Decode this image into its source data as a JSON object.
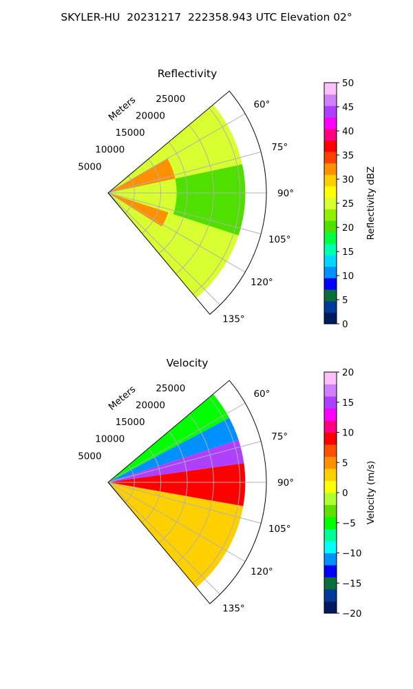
{
  "suptitle": "SKYLER-HU  20231217  222358.943 UTC Elevation 02°",
  "chart_data": [
    {
      "type": "heatmap",
      "projection": "polar-sector",
      "title": "Reflectivity",
      "radial_label": "Meters",
      "radial_ticks": [
        5000,
        10000,
        15000,
        20000,
        25000
      ],
      "theta_ticks": [
        "60°",
        "75°",
        "90°",
        "105°",
        "120°",
        "135°"
      ],
      "theta_range_deg": [
        50,
        140
      ],
      "r_range_m": [
        0,
        30000
      ],
      "grid": true,
      "colorbar": {
        "label": "Reflectivity dBZ",
        "vmin": 0,
        "vmax": 50,
        "ticks": [
          "0",
          "5",
          "10",
          "15",
          "20",
          "25",
          "30",
          "35",
          "40",
          "45",
          "50"
        ],
        "colors": [
          "#001a60",
          "#003a99",
          "#0a6e3a",
          "#0000ff",
          "#0090ff",
          "#00d8ff",
          "#00ffb0",
          "#00ff40",
          "#50e000",
          "#90f000",
          "#d8ff30",
          "#ffff00",
          "#ffd000",
          "#ff9000",
          "#ff4000",
          "#ff0000",
          "#ff0080",
          "#ff00ff",
          "#b040ff",
          "#d080ff",
          "#ffc0ff"
        ]
      },
      "regions": [
        {
          "t0": 50,
          "t1": 140,
          "r0": 0,
          "r1": 26000,
          "value": 24
        },
        {
          "t0": 60,
          "t1": 78,
          "r0": 0,
          "r1": 13000,
          "value": 33
        },
        {
          "t0": 108,
          "t1": 122,
          "r0": 0,
          "r1": 12000,
          "value": 33
        },
        {
          "t0": 78,
          "t1": 108,
          "r0": 13000,
          "r1": 26000,
          "value": 21
        },
        {
          "t0": 50,
          "t1": 70,
          "r0": 14000,
          "r1": 26000,
          "value": 26
        }
      ]
    },
    {
      "type": "heatmap",
      "projection": "polar-sector",
      "title": "Velocity",
      "radial_label": "Meters",
      "radial_ticks": [
        5000,
        10000,
        15000,
        20000,
        25000
      ],
      "theta_ticks": [
        "60°",
        "75°",
        "90°",
        "105°",
        "120°",
        "135°"
      ],
      "theta_range_deg": [
        50,
        140
      ],
      "r_range_m": [
        0,
        30000
      ],
      "grid": true,
      "colorbar": {
        "label": "Velocity (m/s)",
        "vmin": -20,
        "vmax": 20,
        "ticks": [
          "−20",
          "−15",
          "−10",
          "−5",
          "0",
          "5",
          "10",
          "15",
          "20"
        ],
        "colors": [
          "#001a60",
          "#003a99",
          "#0a6e3a",
          "#0000ff",
          "#0090ff",
          "#00ffff",
          "#00ff90",
          "#00ff00",
          "#60e000",
          "#b0ff30",
          "#ffff00",
          "#ffd000",
          "#ff9000",
          "#ff5000",
          "#ff0000",
          "#ff0080",
          "#ff00ff",
          "#b040ff",
          "#d080ff",
          "#ffc0ff"
        ]
      },
      "regions": [
        {
          "t0": 50,
          "t1": 62,
          "r0": 0,
          "r1": 26000,
          "value": -6
        },
        {
          "t0": 62,
          "t1": 72,
          "r0": 0,
          "r1": 26000,
          "value": -11
        },
        {
          "t0": 72,
          "t1": 82,
          "r0": 0,
          "r1": 26000,
          "value": 15
        },
        {
          "t0": 82,
          "t1": 100,
          "r0": 0,
          "r1": 26000,
          "value": 9
        },
        {
          "t0": 100,
          "t1": 140,
          "r0": 0,
          "r1": 26000,
          "value": 2
        }
      ]
    }
  ]
}
